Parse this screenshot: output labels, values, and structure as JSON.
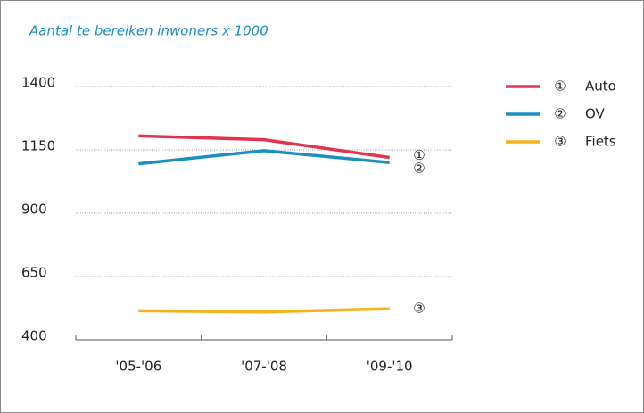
{
  "chart_data": {
    "type": "line",
    "title": "Aantal te bereiken inwoners x 1000",
    "categories": [
      "'05-'06",
      "'07-'08",
      "'09-'10"
    ],
    "series": [
      {
        "name": "Auto",
        "marker": "①",
        "color": "#e3344e",
        "values": [
          1205,
          1190,
          1120
        ]
      },
      {
        "name": "OV",
        "marker": "②",
        "color": "#1b8fc4",
        "values": [
          1095,
          1147,
          1100
        ]
      },
      {
        "name": "Fiets",
        "marker": "③",
        "color": "#f5b21a",
        "values": [
          515,
          510,
          523
        ]
      }
    ],
    "ylim": [
      400,
      1400
    ],
    "yticks": [
      400,
      650,
      900,
      1150,
      1400
    ],
    "grid": true,
    "legend": "right"
  }
}
